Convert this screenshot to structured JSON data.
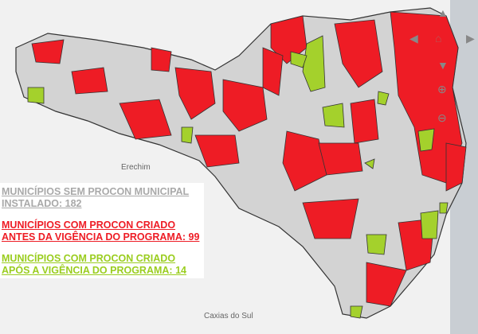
{
  "map": {
    "cities": [
      "Erechim",
      "Caxias do Sul"
    ],
    "colors": {
      "none": "#d3d3d3",
      "before": "#ee1c25",
      "after": "#a4d12c",
      "border": "#333333",
      "sea": "#c9ced3"
    }
  },
  "legend": {
    "sem_procon": "MUNICÍPIOS SEM PROCON MUNICIPAL INSTALADO: 182",
    "antes": "MUNICÍPIOS COM PROCON CRIADO ANTES DA VIGÊNCIA DO PROGRAMA: 99",
    "apos": "MUNICÍPIOS COM PROCON CRIADO APÓS A VIGÊNCIA DO PROGRAMA: 14"
  },
  "controls": [
    "pan-up",
    "pan-left",
    "home",
    "pan-right",
    "pan-down",
    "zoom-in",
    "zoom-out"
  ]
}
